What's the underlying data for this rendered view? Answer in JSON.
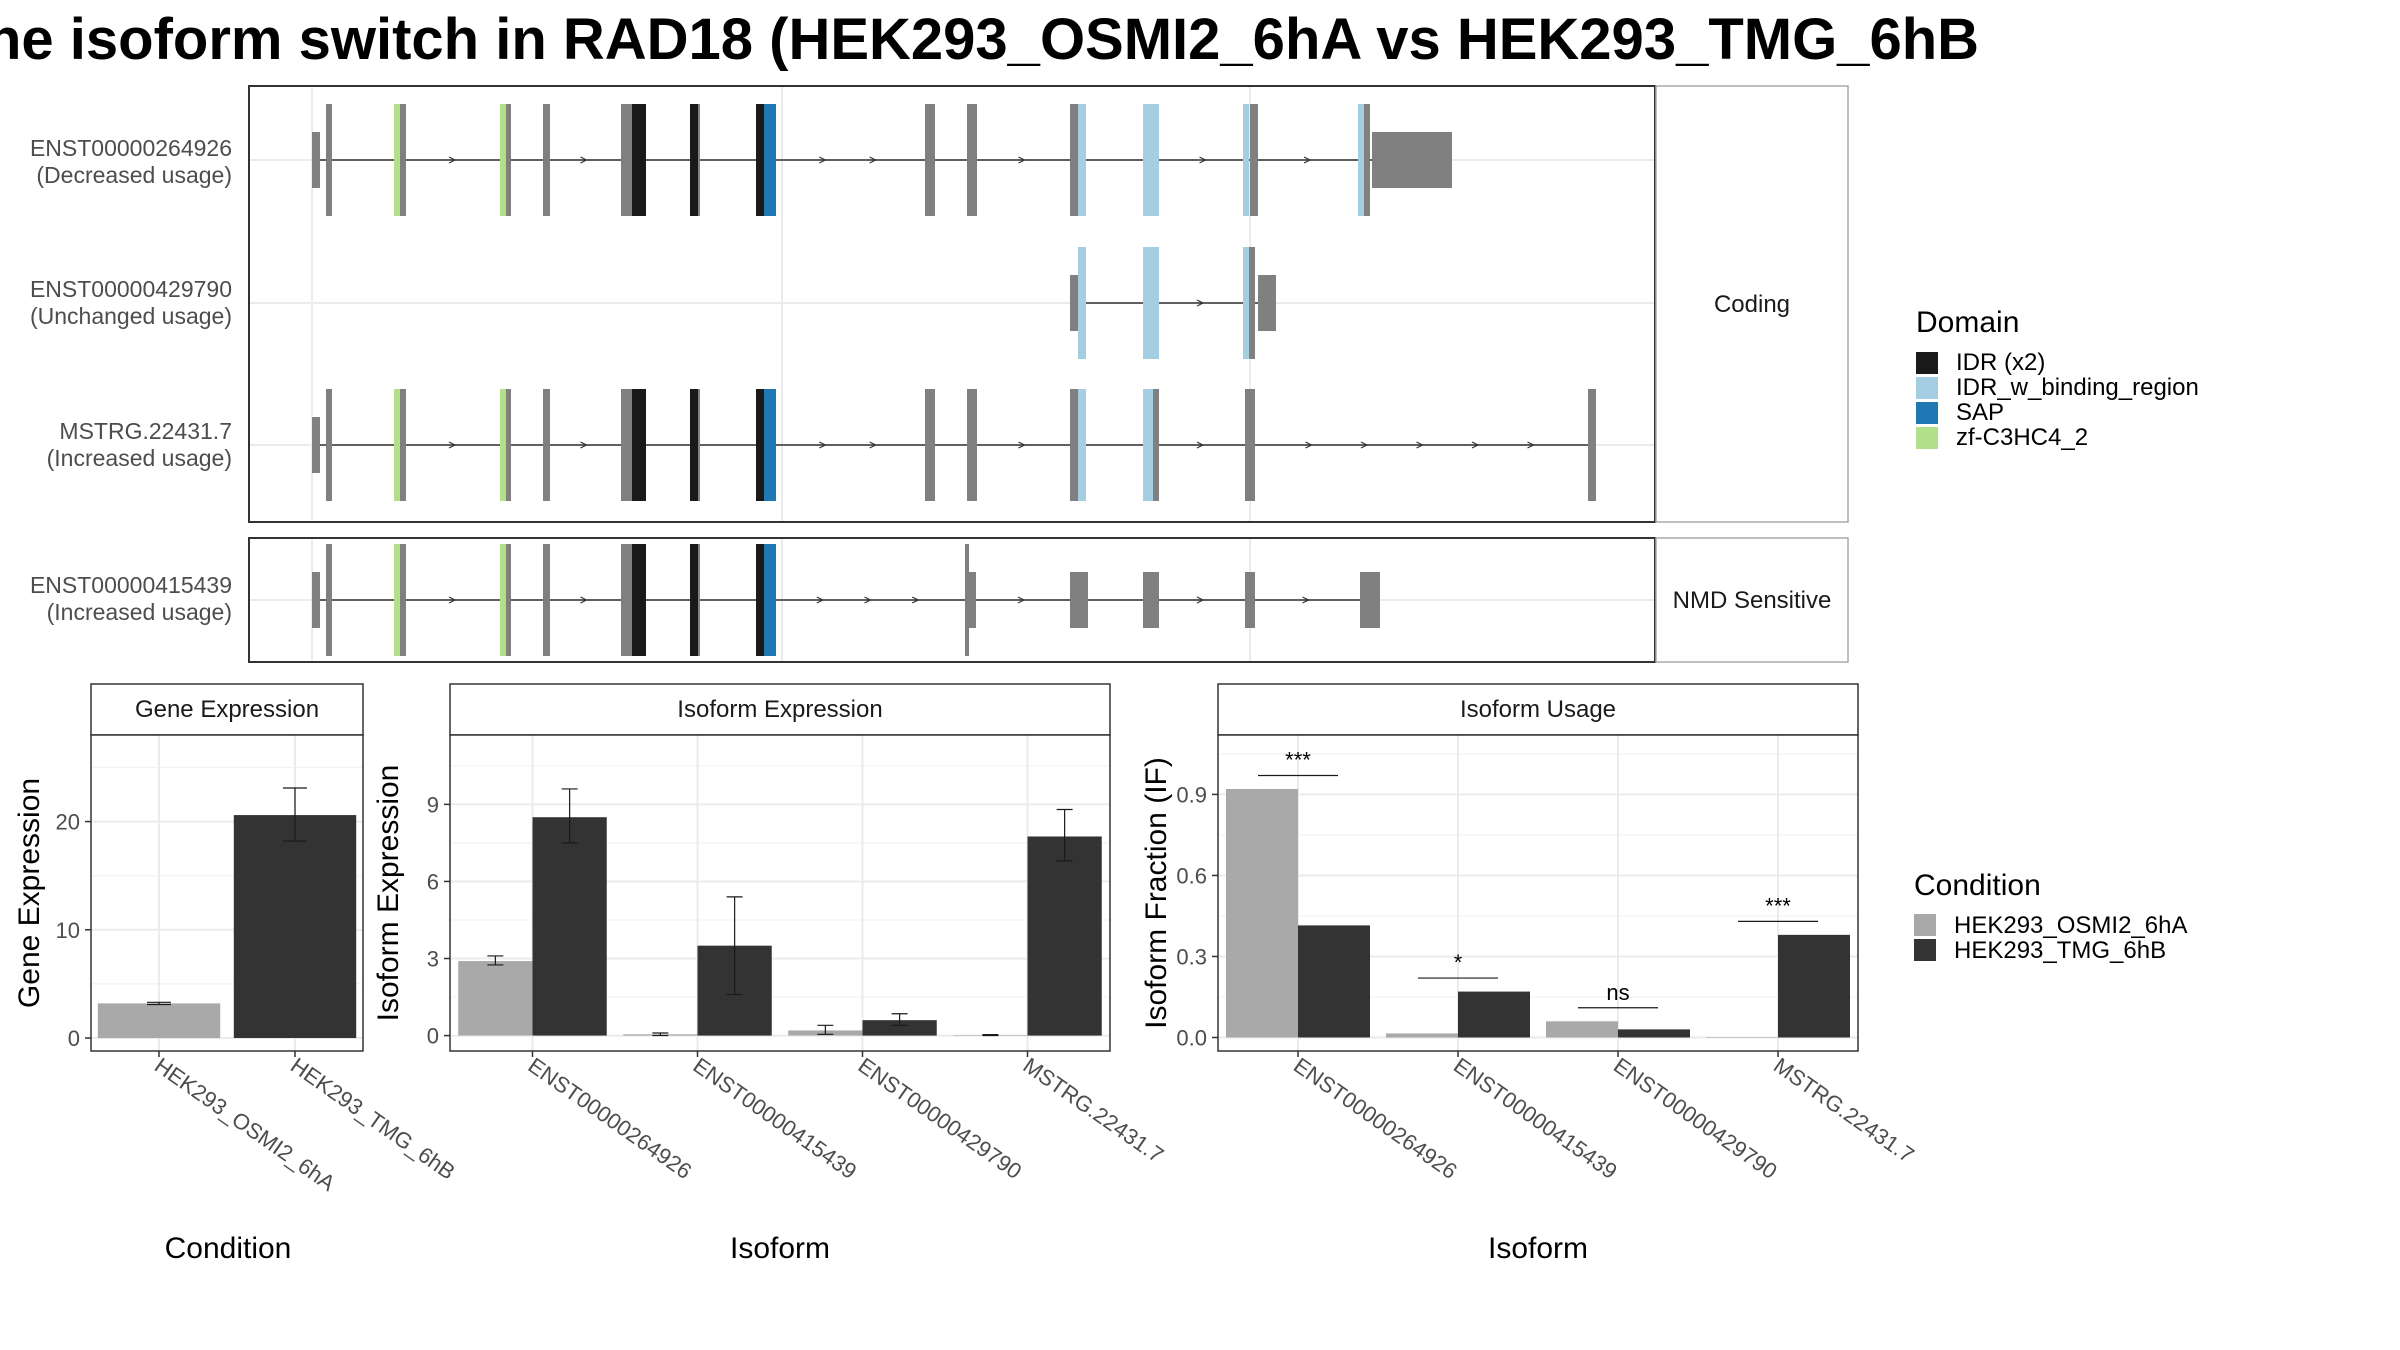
{
  "title": "he isoform switch in RAD18 (HEK293_OSMI2_6hA vs HEK293_TMG_6hB",
  "colors": {
    "exon": "#808080",
    "idr_x2": "#1a1a1a",
    "idr_w_binding_region": "#a6cee3",
    "sap": "#1f78b4",
    "zf_c3hc4_2": "#b2df8a",
    "cond_a": "#a9a9a9",
    "cond_b": "#333333"
  },
  "legend_domain": {
    "title": "Domain",
    "items": [
      {
        "label": "IDR (x2)",
        "color": "#1a1a1a"
      },
      {
        "label": "IDR_w_binding_region",
        "color": "#a6cee3"
      },
      {
        "label": "SAP",
        "color": "#1f78b4"
      },
      {
        "label": "zf-C3HC4_2",
        "color": "#b2df8a"
      }
    ]
  },
  "legend_condition": {
    "title": "Condition",
    "items": [
      {
        "label": "HEK293_OSMI2_6hA",
        "color": "#a9a9a9"
      },
      {
        "label": "HEK293_TMG_6hB",
        "color": "#333333"
      }
    ]
  },
  "transcripts": {
    "strip_coding": "Coding",
    "strip_nmd": "NMD Sensitive",
    "rows": [
      {
        "id": "ENST00000264926",
        "usage": "(Decreased usage)",
        "panel": "coding"
      },
      {
        "id": "ENST00000429790",
        "usage": "(Unchanged usage)",
        "panel": "coding"
      },
      {
        "id": "MSTRG.22431.7",
        "usage": "(Increased usage)",
        "panel": "coding"
      },
      {
        "id": "ENST00000415439",
        "usage": "(Increased usage)",
        "panel": "nmd"
      }
    ]
  },
  "chart_data": [
    {
      "type": "bar",
      "title": "Gene Expression",
      "xlabel": "Condition",
      "ylabel": "Gene Expression",
      "categories": [
        "HEK293_OSMI2_6hA",
        "HEK293_TMG_6hB"
      ],
      "values": [
        3.2,
        20.6
      ],
      "errors": [
        [
          3.1,
          3.3
        ],
        [
          18.2,
          23.1
        ]
      ],
      "yticks": [
        0,
        10,
        20
      ],
      "ylim": [
        -1.2,
        28
      ]
    },
    {
      "type": "bar",
      "title": "Isoform Expression",
      "xlabel": "Isoform",
      "ylabel": "Isoform Expression",
      "categories": [
        "ENST00000264926",
        "ENST00000415439",
        "ENST00000429790",
        "MSTRG.22431.7"
      ],
      "series": [
        {
          "name": "HEK293_OSMI2_6hA",
          "values": [
            2.9,
            0.05,
            0.2,
            0.02
          ],
          "errors": [
            [
              2.75,
              3.1
            ],
            [
              0.0,
              0.1
            ],
            [
              0.05,
              0.4
            ],
            [
              0.0,
              0.04
            ]
          ]
        },
        {
          "name": "HEK293_TMG_6hB",
          "values": [
            8.5,
            3.5,
            0.6,
            7.75
          ],
          "errors": [
            [
              7.5,
              9.6
            ],
            [
              1.6,
              5.4
            ],
            [
              0.4,
              0.85
            ],
            [
              6.8,
              8.8
            ]
          ]
        }
      ],
      "yticks": [
        0,
        3,
        6,
        9
      ],
      "ylim": [
        -0.6,
        11.7
      ]
    },
    {
      "type": "bar",
      "title": "Isoform Usage",
      "xlabel": "Isoform",
      "ylabel": "Isoform Fraction (IF)",
      "categories": [
        "ENST00000264926",
        "ENST00000415439",
        "ENST00000429790",
        "MSTRG.22431.7"
      ],
      "series": [
        {
          "name": "HEK293_OSMI2_6hA",
          "values": [
            0.92,
            0.015,
            0.06,
            0.0
          ]
        },
        {
          "name": "HEK293_TMG_6hB",
          "values": [
            0.415,
            0.17,
            0.03,
            0.38
          ]
        }
      ],
      "significance": [
        "***",
        "*",
        "ns",
        "***"
      ],
      "significance_y": [
        0.97,
        0.22,
        0.11,
        0.43
      ],
      "yticks": [
        0.0,
        0.3,
        0.6,
        0.9
      ],
      "ylim": [
        -0.05,
        1.12
      ]
    }
  ]
}
